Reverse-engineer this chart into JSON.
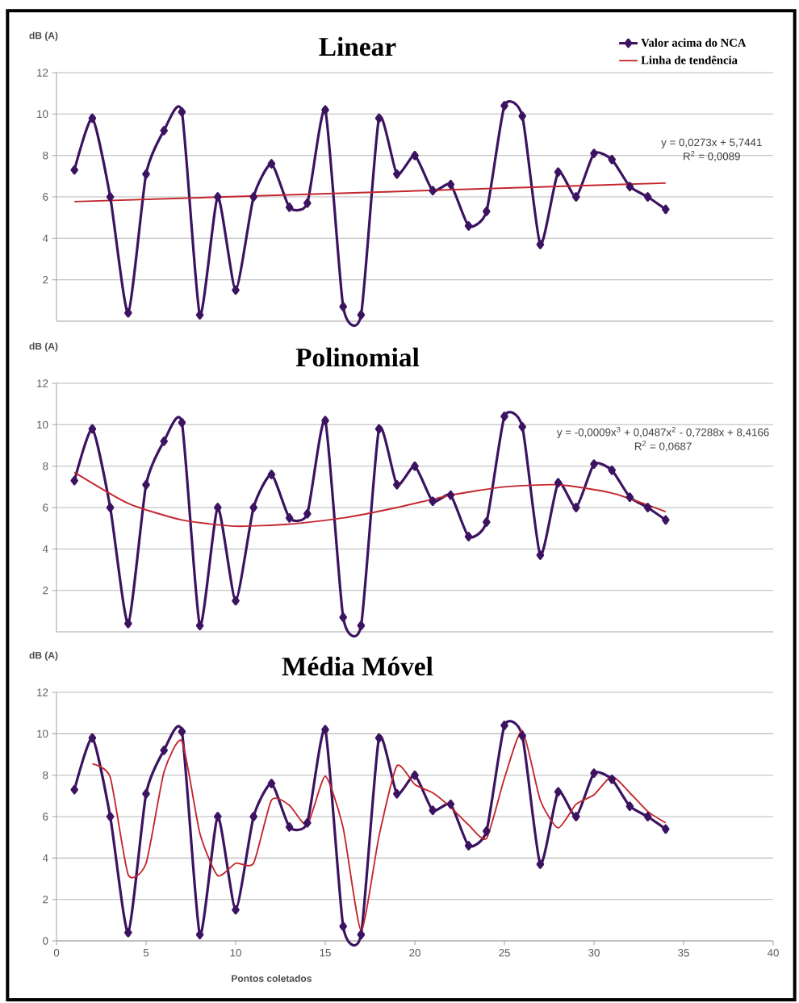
{
  "chart_data": [
    {
      "type": "line",
      "title": "Linear",
      "ylabel": "dB (A)",
      "x": [
        1,
        2,
        3,
        4,
        5,
        6,
        7,
        8,
        9,
        10,
        11,
        12,
        13,
        14,
        15,
        16,
        17,
        18,
        19,
        20,
        21,
        22,
        23,
        24,
        25,
        26,
        27,
        28,
        29,
        30,
        31,
        32,
        33,
        34
      ],
      "xlim": [
        0,
        40
      ],
      "ylim": [
        0,
        12
      ],
      "yticks": [
        2,
        4,
        6,
        8,
        10,
        12
      ],
      "tick_labels": "y",
      "grid": "y",
      "legend": "top right",
      "marker": "diamond",
      "line_style": "solid",
      "series": [
        {
          "name": "Valor acima do NCA",
          "color": "#3c1361",
          "values": [
            7.3,
            9.8,
            6.0,
            0.4,
            7.1,
            9.2,
            10.1,
            0.3,
            6.0,
            1.5,
            6.0,
            7.6,
            5.5,
            5.7,
            10.2,
            0.7,
            0.3,
            9.8,
            7.1,
            8.0,
            6.3,
            6.6,
            4.6,
            5.3,
            10.4,
            9.9,
            3.7,
            7.2,
            6.0,
            8.1,
            7.8,
            6.5,
            6.0,
            5.4
          ]
        },
        {
          "name": "Linha de tendência",
          "color": "#c4262e",
          "marker": "none",
          "x": [
            1,
            34
          ],
          "values": [
            5.77,
            6.67
          ]
        }
      ],
      "annotations": [
        "y = 0,0273x + 5,7441",
        "R$^{2}$ = 0,0089"
      ]
    },
    {
      "type": "line",
      "title": "Polinomial",
      "ylabel": "dB (A)",
      "x": [
        1,
        2,
        3,
        4,
        5,
        6,
        7,
        8,
        9,
        10,
        11,
        12,
        13,
        14,
        15,
        16,
        17,
        18,
        19,
        20,
        21,
        22,
        23,
        24,
        25,
        26,
        27,
        28,
        29,
        30,
        31,
        32,
        33,
        34
      ],
      "xlim": [
        0,
        40
      ],
      "ylim": [
        0,
        12
      ],
      "yticks": [
        2,
        4,
        6,
        8,
        10,
        12
      ],
      "tick_labels": "y",
      "grid": "y",
      "marker": "diamond",
      "line_style": "solid",
      "series": [
        {
          "color": "#3c1361",
          "values": [
            7.3,
            9.8,
            6.0,
            0.4,
            7.1,
            9.2,
            10.1,
            0.3,
            6.0,
            1.5,
            6.0,
            7.6,
            5.5,
            5.7,
            10.2,
            0.7,
            0.3,
            9.8,
            7.1,
            8.0,
            6.3,
            6.6,
            4.6,
            5.3,
            10.4,
            9.9,
            3.7,
            7.2,
            6.0,
            8.1,
            7.8,
            6.5,
            6.0,
            5.4
          ]
        },
        {
          "color": "#c4262e",
          "marker": "none",
          "x": [
            1,
            4,
            7,
            10,
            13,
            16,
            19,
            22,
            25,
            28,
            31,
            34
          ],
          "values": [
            7.7,
            6.2,
            5.4,
            5.1,
            5.2,
            5.5,
            6.0,
            6.6,
            7.0,
            7.1,
            6.7,
            5.8
          ]
        }
      ],
      "annotations": [
        "y = -0,0009x$^{3}$ + 0,0487x$^{2}$ - 0,7288x + 8,4166",
        "R$^{2}$ = 0,0687"
      ]
    },
    {
      "type": "line",
      "title": "Média Móvel",
      "ylabel": "dB (A)",
      "xlabel": "Pontos coletados",
      "x": [
        1,
        2,
        3,
        4,
        5,
        6,
        7,
        8,
        9,
        10,
        11,
        12,
        13,
        14,
        15,
        16,
        17,
        18,
        19,
        20,
        21,
        22,
        23,
        24,
        25,
        26,
        27,
        28,
        29,
        30,
        31,
        32,
        33,
        34
      ],
      "xlim": [
        0,
        40
      ],
      "xticks": [
        0,
        5,
        10,
        15,
        20,
        25,
        30,
        35,
        40
      ],
      "ylim": [
        0,
        12
      ],
      "yticks": [
        0,
        2,
        4,
        6,
        8,
        10,
        12
      ],
      "grid": "y",
      "marker": "diamond",
      "line_style": "solid",
      "series": [
        {
          "color": "#3c1361",
          "values": [
            7.3,
            9.8,
            6.0,
            0.4,
            7.1,
            9.2,
            10.1,
            0.3,
            6.0,
            1.5,
            6.0,
            7.6,
            5.5,
            5.7,
            10.2,
            0.7,
            0.3,
            9.8,
            7.1,
            8.0,
            6.3,
            6.6,
            4.6,
            5.3,
            10.4,
            9.9,
            3.7,
            7.2,
            6.0,
            8.1,
            7.8,
            6.5,
            6.0,
            5.4
          ]
        },
        {
          "color": "#c4262e",
          "marker": "none",
          "x": [
            2,
            3,
            4,
            5,
            6,
            7,
            8,
            9,
            10,
            11,
            12,
            13,
            14,
            15,
            16,
            17,
            18,
            19,
            20,
            21,
            22,
            23,
            24,
            25,
            26,
            27,
            28,
            29,
            30,
            31,
            32,
            33,
            34
          ],
          "values": [
            8.55,
            7.9,
            3.2,
            3.75,
            8.15,
            9.65,
            5.2,
            3.15,
            3.75,
            3.75,
            6.8,
            6.55,
            5.6,
            7.95,
            5.45,
            0.5,
            5.05,
            8.45,
            7.55,
            7.15,
            6.45,
            5.6,
            4.95,
            7.85,
            10.15,
            6.8,
            5.45,
            6.6,
            7.05,
            7.95,
            7.15,
            6.25,
            5.7
          ]
        }
      ]
    }
  ]
}
